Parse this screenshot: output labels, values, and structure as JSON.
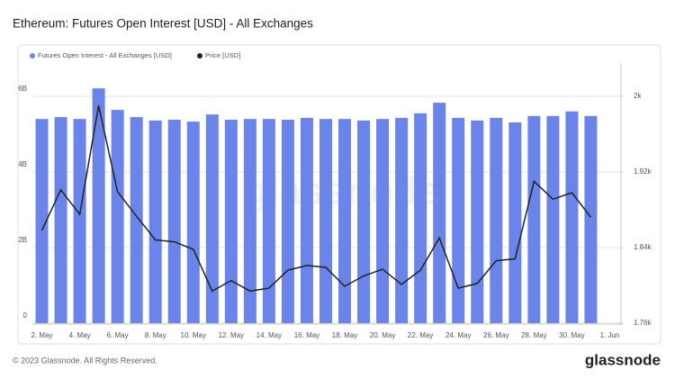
{
  "chart_data": {
    "type": "bar-line",
    "title": "Ethereum: Futures Open Interest [USD] - All Exchanges",
    "watermark": "glassnode",
    "footer": "© 2023 Glassnode. All Rights Reserved.",
    "logo": "glassnode",
    "categories": [
      "2. May",
      null,
      "4. May",
      null,
      "6. May",
      null,
      "8. May",
      null,
      "10. May",
      null,
      "12. May",
      null,
      "14. May",
      null,
      "16. May",
      null,
      "18. May",
      null,
      "20. May",
      null,
      "22. May",
      null,
      "24. May",
      null,
      "26. May",
      null,
      "28. May",
      null,
      "30. May",
      null,
      "1. Jun"
    ],
    "series": [
      {
        "name": "Futures Open Interest - All Exchanges [USD]",
        "type": "bar",
        "color": "#6b84ea",
        "values": [
          5400000000,
          5450000000,
          5400000000,
          6210000000,
          5640000000,
          5450000000,
          5360000000,
          5380000000,
          5330000000,
          5520000000,
          5380000000,
          5400000000,
          5400000000,
          5380000000,
          5430000000,
          5400000000,
          5400000000,
          5360000000,
          5400000000,
          5430000000,
          5550000000,
          5830000000,
          5430000000,
          5360000000,
          5430000000,
          5310000000,
          5480000000,
          5480000000,
          5600000000,
          5480000000,
          null
        ]
      },
      {
        "name": "Price [USD]",
        "type": "line",
        "axis": "y2",
        "color": "#222222",
        "values": [
          1858,
          1901,
          1875,
          1990,
          1899,
          1873,
          1848,
          1846,
          1838,
          1794,
          1805,
          1794,
          1797,
          1816,
          1821,
          1819,
          1799,
          1810,
          1817,
          1801,
          1816,
          1850,
          1797,
          1802,
          1826,
          1828,
          1910,
          1891,
          1898,
          1872,
          null
        ]
      }
    ],
    "ylim": [
      0,
      6880000000
    ],
    "yticks": [
      0,
      {
        "value": 2000000000,
        "label": "2B"
      },
      {
        "value": 4000000000,
        "label": "4B"
      },
      {
        "value": 6000000000,
        "label": "6B"
      }
    ],
    "y2lim": [
      1760,
      2035
    ],
    "y2ticks": [
      {
        "value": 1760,
        "label": "1.76k"
      },
      {
        "value": 1840,
        "label": "1.84k"
      },
      {
        "value": 1920,
        "label": "1.92k"
      },
      {
        "value": 2000,
        "label": "2k"
      }
    ],
    "grid": true
  }
}
